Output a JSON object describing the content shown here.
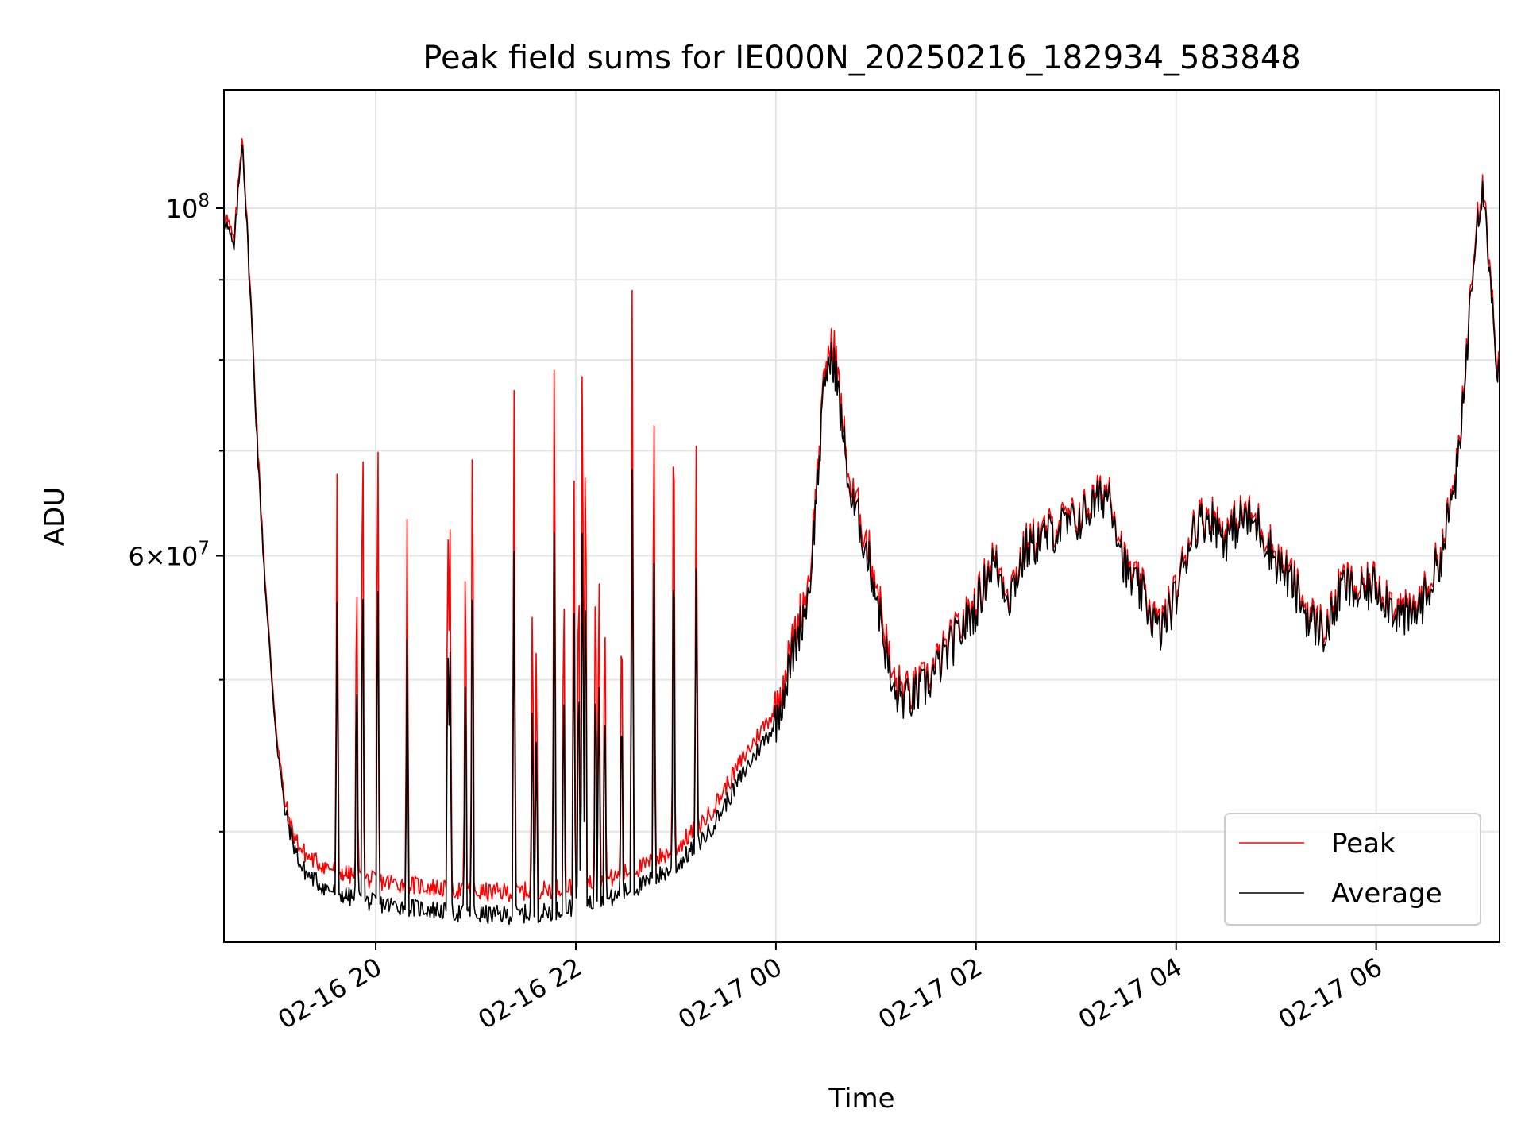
{
  "chart_data": {
    "type": "line",
    "title": "Peak field sums for IE000N_20250216_182934_583848",
    "xlabel": "Time",
    "ylabel": "ADU",
    "yscale": "log",
    "xlim": [
      "02-16 18:29",
      "02-17 07:14"
    ],
    "ylim": [
      34000000,
      119000000
    ],
    "x_tick_labels": [
      "02-16 20",
      "02-16 22",
      "02-17 00",
      "02-17 02",
      "02-17 04",
      "02-17 06"
    ],
    "y_tick_labels": [
      "10^8",
      "6×10^7"
    ],
    "grid": true,
    "legend_position": "lower-right",
    "series": [
      {
        "name": "Peak",
        "color": "#ff0000",
        "x": [
          "02-16 18:29",
          "02-16 18:35",
          "02-16 18:40",
          "02-16 18:45",
          "02-16 18:50",
          "02-16 18:55",
          "02-16 19:00",
          "02-16 19:05",
          "02-16 19:10",
          "02-16 19:15",
          "02-16 19:20",
          "02-16 19:30",
          "02-16 19:45",
          "02-16 20:00",
          "02-16 20:20",
          "02-16 20:40",
          "02-16 21:00",
          "02-16 21:20",
          "02-16 21:40",
          "02-16 22:00",
          "02-16 22:20",
          "02-16 22:40",
          "02-16 23:00",
          "02-16 23:20",
          "02-16 23:40",
          "02-17 00:00",
          "02-17 00:20",
          "02-17 00:30",
          "02-17 00:35",
          "02-17 00:40",
          "02-17 00:45",
          "02-17 00:50",
          "02-17 01:00",
          "02-17 01:10",
          "02-17 01:20",
          "02-17 01:30",
          "02-17 01:40",
          "02-17 01:50",
          "02-17 02:00",
          "02-17 02:10",
          "02-17 02:20",
          "02-17 02:30",
          "02-17 02:40",
          "02-17 02:50",
          "02-17 03:00",
          "02-17 03:10",
          "02-17 03:20",
          "02-17 03:30",
          "02-17 03:40",
          "02-17 03:50",
          "02-17 04:00",
          "02-17 04:10",
          "02-17 04:20",
          "02-17 04:30",
          "02-17 04:40",
          "02-17 04:50",
          "02-17 05:00",
          "02-17 05:10",
          "02-17 05:20",
          "02-17 05:30",
          "02-17 05:40",
          "02-17 05:50",
          "02-17 06:00",
          "02-17 06:10",
          "02-17 06:20",
          "02-17 06:30",
          "02-17 06:40",
          "02-17 06:50",
          "02-17 07:00",
          "02-17 07:05",
          "02-17 07:10",
          "02-17 07:14"
        ],
        "y": [
          100000000,
          95000000,
          112000000,
          88000000,
          68000000,
          55000000,
          47000000,
          42000000,
          40000000,
          39000000,
          38500000,
          38000000,
          37500000,
          37200000,
          37000000,
          36800000,
          36600000,
          36600000,
          36700000,
          36900000,
          37300000,
          38000000,
          39000000,
          41000000,
          44500000,
          48000000,
          58000000,
          80000000,
          82000000,
          73000000,
          66000000,
          64000000,
          58000000,
          50000000,
          49000000,
          50000000,
          52000000,
          54000000,
          56000000,
          60000000,
          57000000,
          61000000,
          62000000,
          63000000,
          63500000,
          65000000,
          66500000,
          59000000,
          57000000,
          54000000,
          57000000,
          63000000,
          64000000,
          62000000,
          64000000,
          63000000,
          60000000,
          58000000,
          55000000,
          54000000,
          58000000,
          57000000,
          58000000,
          56000000,
          55000000,
          57000000,
          61000000,
          70000000,
          100000000,
          104000000,
          86000000,
          78000000
        ]
      },
      {
        "name": "Average",
        "color": "#000000",
        "x": [
          "02-16 18:29",
          "02-16 18:35",
          "02-16 18:40",
          "02-16 18:45",
          "02-16 18:50",
          "02-16 18:55",
          "02-16 19:00",
          "02-16 19:05",
          "02-16 19:10",
          "02-16 19:15",
          "02-16 19:20",
          "02-16 19:30",
          "02-16 19:45",
          "02-16 20:00",
          "02-16 20:20",
          "02-16 20:40",
          "02-16 21:00",
          "02-16 21:20",
          "02-16 21:40",
          "02-16 22:00",
          "02-16 22:20",
          "02-16 22:40",
          "02-16 23:00",
          "02-16 23:20",
          "02-16 23:40",
          "02-17 00:00",
          "02-17 00:20",
          "02-17 00:30",
          "02-17 00:35",
          "02-17 00:40",
          "02-17 00:45",
          "02-17 00:50",
          "02-17 01:00",
          "02-17 01:10",
          "02-17 01:20",
          "02-17 01:30",
          "02-17 01:40",
          "02-17 01:50",
          "02-17 02:00",
          "02-17 02:10",
          "02-17 02:20",
          "02-17 02:30",
          "02-17 02:40",
          "02-17 02:50",
          "02-17 03:00",
          "02-17 03:10",
          "02-17 03:20",
          "02-17 03:30",
          "02-17 03:40",
          "02-17 03:50",
          "02-17 04:00",
          "02-17 04:10",
          "02-17 04:20",
          "02-17 04:30",
          "02-17 04:40",
          "02-17 04:50",
          "02-17 05:00",
          "02-17 05:10",
          "02-17 05:20",
          "02-17 05:30",
          "02-17 05:40",
          "02-17 05:50",
          "02-17 06:00",
          "02-17 06:10",
          "02-17 06:20",
          "02-17 06:30",
          "02-17 06:40",
          "02-17 06:50",
          "02-17 07:00",
          "02-17 07:05",
          "02-17 07:10",
          "02-17 07:14"
        ],
        "y": [
          99000000,
          94000000,
          111000000,
          87000000,
          67000000,
          54500000,
          46500000,
          41500000,
          39500000,
          38000000,
          37500000,
          36800000,
          36300000,
          36000000,
          35800000,
          35600000,
          35400000,
          35400000,
          35500000,
          35800000,
          36200000,
          37000000,
          38000000,
          40000000,
          43500000,
          47000000,
          57000000,
          79000000,
          80000000,
          72000000,
          65000000,
          63000000,
          57000000,
          49000000,
          48500000,
          49500000,
          51500000,
          53500000,
          55500000,
          59500000,
          56500000,
          60500000,
          61500000,
          62500000,
          63000000,
          64500000,
          66000000,
          58500000,
          56500000,
          53500000,
          56500000,
          62500000,
          63500000,
          61500000,
          63500000,
          62500000,
          59500000,
          57500000,
          54500000,
          53500000,
          57500000,
          56500000,
          57500000,
          55500000,
          54500000,
          56500000,
          60500000,
          69500000,
          99000000,
          103000000,
          85000000,
          77000000
        ]
      }
    ]
  }
}
